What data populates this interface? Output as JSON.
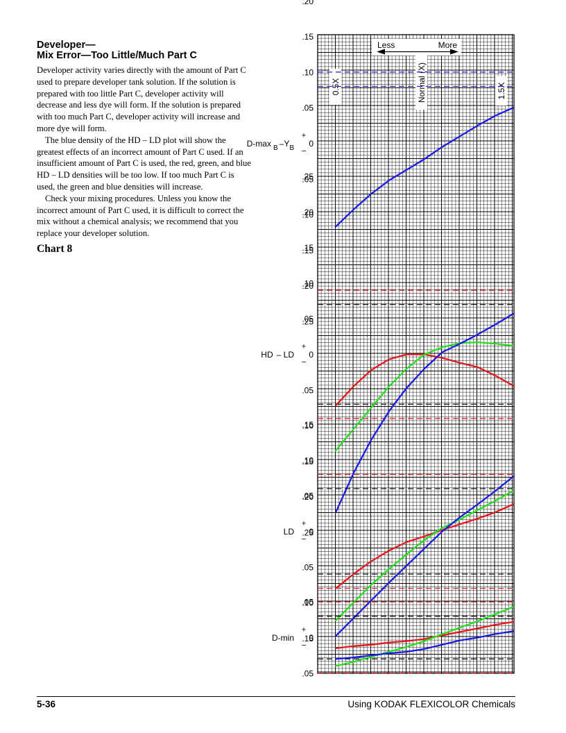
{
  "heading": {
    "line1": "Developer—",
    "line2": "Mix Error—Too Little/Much Part C"
  },
  "paragraphs": [
    "Developer activity varies directly with the amount of Part C used to prepare developer tank solution. If the solution is prepared with too little Part C, developer activity will decrease and less dye will form. If the solution is prepared with too much Part C, developer activity will increase and more dye will form.",
    "The blue density of the HD – LD plot will show the greatest effects of an incorrect amount of Part C used. If an insufficient amount of Part C is used, the red, green, and blue HD – LD densities will be too low. If too much Part C is used, the green and blue densities will increase.",
    "Check your mixing procedures. Unless you know the incorrect amount of Part C used, it is difficult to correct the mix without a chemical analysis; we recommend that you replace your developer solution."
  ],
  "chart_title": "Chart 8",
  "footer": {
    "page_number": "5-36",
    "publication": "Using KODAK FLEXICOLOR Chemicals"
  },
  "chart_data": {
    "type": "line",
    "colors": {
      "red": "#e8141c",
      "green": "#22e01e",
      "blue": "#1a1ae6",
      "limit": "#000000",
      "grid": "#000000"
    },
    "x_markers": {
      "less_label": "Less",
      "more_label": "More",
      "x": [
        0.5,
        1.0,
        1.5
      ],
      "labels": [
        "0.5X",
        "Normal (X)",
        "1.5X"
      ]
    },
    "x_range": [
      0.5,
      1.5
    ],
    "panels": [
      {
        "label_parts": [
          "D-max",
          "B",
          "–Y",
          "B"
        ],
        "plus_sign": "+",
        "minus_sign": "–",
        "y_range": [
          -0.25,
          0.25
        ],
        "ticks": [
          {
            "v": 0.25,
            "t": ".25"
          },
          {
            "v": 0.2,
            "t": ".20"
          },
          {
            "v": 0.15,
            "t": ".15"
          },
          {
            "v": 0.1,
            "t": ".10"
          },
          {
            "v": 0.05,
            "t": ".05"
          },
          {
            "v": 0,
            "t": "0"
          },
          {
            "v": -0.05,
            "t": ".05"
          },
          {
            "v": -0.1,
            "t": ".10"
          },
          {
            "v": -0.15,
            "t": ".15"
          },
          {
            "v": -0.2,
            "t": ".20"
          },
          {
            "v": -0.25,
            "t": ".25"
          }
        ],
        "limits": [
          {
            "y": 0.1,
            "color": "blue"
          },
          {
            "y": 0.08,
            "color": "blue"
          }
        ],
        "series": [
          {
            "color": "blue",
            "x": [
              0.5,
              0.6,
              0.7,
              0.8,
              0.9,
              1.0,
              1.1,
              1.2,
              1.3,
              1.4,
              1.5
            ],
            "y": [
              -0.117,
              -0.093,
              -0.071,
              -0.052,
              -0.037,
              -0.022,
              -0.005,
              0.01,
              0.025,
              0.039,
              0.05
            ]
          }
        ]
      },
      {
        "label_parts": [
          "HD",
          "– LD"
        ],
        "plus_sign": "+",
        "minus_sign": "–",
        "y_range": [
          -0.25,
          0.25
        ],
        "ticks": [
          {
            "v": 0.25,
            "t": ".25"
          },
          {
            "v": 0.2,
            "t": ".20"
          },
          {
            "v": 0.15,
            "t": ".15"
          },
          {
            "v": 0.1,
            "t": ".10"
          },
          {
            "v": 0.05,
            "t": ".05"
          },
          {
            "v": 0,
            "t": "0"
          },
          {
            "v": -0.05,
            "t": ".05"
          },
          {
            "v": -0.1,
            "t": ".10"
          },
          {
            "v": -0.15,
            "t": ".15"
          },
          {
            "v": -0.2,
            "t": ".20"
          },
          {
            "v": -0.25,
            "t": ".25"
          }
        ],
        "limits": [
          {
            "y": 0.09,
            "color": "red"
          },
          {
            "y": 0.07,
            "color": "limit"
          },
          {
            "y": -0.07,
            "color": "limit"
          },
          {
            "y": -0.09,
            "color": "red"
          }
        ],
        "series": [
          {
            "color": "red",
            "x": [
              0.5,
              0.6,
              0.7,
              0.8,
              0.9,
              1.0,
              1.1,
              1.2,
              1.3,
              1.4,
              1.5
            ],
            "y": [
              -0.072,
              -0.045,
              -0.022,
              -0.007,
              0.0,
              0.0,
              -0.005,
              -0.012,
              -0.018,
              -0.03,
              -0.044
            ]
          },
          {
            "color": "green",
            "x": [
              0.5,
              0.6,
              0.7,
              0.8,
              0.9,
              1.0,
              1.1,
              1.2,
              1.3,
              1.4,
              1.5
            ],
            "y": [
              -0.135,
              -0.105,
              -0.075,
              -0.045,
              -0.02,
              0.0,
              0.01,
              0.016,
              0.017,
              0.015,
              0.012
            ]
          },
          {
            "color": "blue",
            "x": [
              0.5,
              0.6,
              0.7,
              0.8,
              0.9,
              1.0,
              1.1,
              1.2,
              1.3,
              1.4,
              1.5
            ],
            "y": [
              -0.222,
              -0.167,
              -0.12,
              -0.08,
              -0.047,
              -0.02,
              0.003,
              0.015,
              0.028,
              0.042,
              0.057
            ]
          }
        ]
      },
      {
        "label_parts": [
          "LD"
        ],
        "plus_sign": "+",
        "minus_sign": "–",
        "y_range": [
          -0.15,
          0.15
        ],
        "ticks": [
          {
            "v": 0.15,
            "t": ".15"
          },
          {
            "v": 0.1,
            "t": ".10"
          },
          {
            "v": 0.05,
            "t": ".05"
          },
          {
            "v": 0,
            "t": "0"
          },
          {
            "v": -0.05,
            "t": ".05"
          },
          {
            "v": -0.1,
            "t": ".10"
          },
          {
            "v": -0.15,
            "t": ".15"
          }
        ],
        "limits": [
          {
            "y": 0.08,
            "color": "red"
          },
          {
            "y": 0.06,
            "color": "limit"
          },
          {
            "y": -0.06,
            "color": "limit"
          },
          {
            "y": -0.08,
            "color": "red"
          }
        ],
        "series": [
          {
            "color": "red",
            "x": [
              0.5,
              0.6,
              0.7,
              0.8,
              0.9,
              1.0,
              1.1,
              1.2,
              1.3,
              1.4,
              1.5
            ],
            "y": [
              -0.08,
              -0.06,
              -0.042,
              -0.027,
              -0.015,
              -0.007,
              0.002,
              0.01,
              0.018,
              0.027,
              0.038
            ]
          },
          {
            "color": "green",
            "x": [
              0.5,
              0.6,
              0.7,
              0.8,
              0.9,
              1.0,
              1.1,
              1.2,
              1.3,
              1.4,
              1.5
            ],
            "y": [
              -0.125,
              -0.1,
              -0.075,
              -0.053,
              -0.032,
              -0.012,
              0.005,
              0.017,
              0.03,
              0.043,
              0.057
            ]
          },
          {
            "color": "blue",
            "x": [
              0.5,
              0.6,
              0.7,
              0.8,
              0.9,
              1.0,
              1.1,
              1.2,
              1.3,
              1.4,
              1.5
            ],
            "y": [
              -0.147,
              -0.122,
              -0.097,
              -0.072,
              -0.048,
              -0.024,
              0.0,
              0.02,
              0.038,
              0.057,
              0.077
            ]
          }
        ]
      },
      {
        "label_parts": [
          "D-min"
        ],
        "plus_sign": "+",
        "minus_sign": "–",
        "y_range": [
          -0.05,
          0.05
        ],
        "ticks": [
          {
            "v": 0.05,
            "t": ".05"
          },
          {
            "v": 0,
            "t": "0"
          },
          {
            "v": -0.05,
            "t": ".05"
          }
        ],
        "limits": [
          {
            "y": 0.05,
            "color": "red"
          },
          {
            "y": 0.03,
            "color": "limit"
          },
          {
            "y": -0.03,
            "color": "limit"
          },
          {
            "y": -0.05,
            "color": "red"
          }
        ],
        "series": [
          {
            "color": "red",
            "x": [
              0.5,
              0.6,
              0.7,
              0.8,
              0.9,
              1.0,
              1.1,
              1.2,
              1.3,
              1.4,
              1.5
            ],
            "y": [
              -0.015,
              -0.012,
              -0.01,
              -0.007,
              -0.005,
              -0.002,
              0.003,
              0.008,
              0.013,
              0.018,
              0.022
            ]
          },
          {
            "color": "green",
            "x": [
              0.5,
              0.6,
              0.7,
              0.8,
              0.9,
              1.0,
              1.1,
              1.2,
              1.3,
              1.4,
              1.5
            ],
            "y": [
              -0.04,
              -0.034,
              -0.027,
              -0.02,
              -0.013,
              -0.005,
              0.005,
              0.014,
              0.023,
              0.033,
              0.043
            ]
          },
          {
            "color": "blue",
            "x": [
              0.5,
              0.6,
              0.7,
              0.8,
              0.9,
              1.0,
              1.1,
              1.2,
              1.3,
              1.4,
              1.5
            ],
            "y": [
              -0.03,
              -0.028,
              -0.025,
              -0.022,
              -0.02,
              -0.016,
              -0.01,
              -0.004,
              0.0,
              0.005,
              0.009
            ]
          }
        ]
      }
    ]
  }
}
